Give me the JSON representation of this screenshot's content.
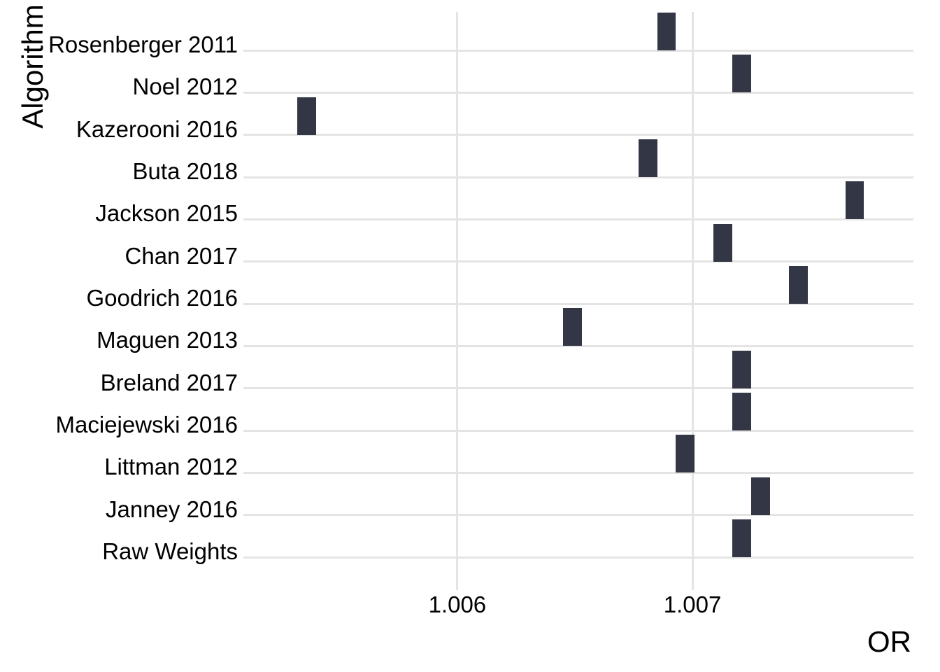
{
  "chart_data": {
    "type": "bar",
    "subtype": "horizontal-forest-crossbar",
    "title": "",
    "xlabel": "OR",
    "ylabel": "Algorithm",
    "legend_position": "none",
    "grid": true,
    "categories": [
      "Rosenberger 2011",
      "Noel 2012",
      "Kazerooni 2016",
      "Buta 2018",
      "Jackson 2015",
      "Chan 2017",
      "Goodrich 2016",
      "Maguen 2013",
      "Breland 2017",
      "Maciejewski 2016",
      "Littman 2012",
      "Janney 2016",
      "Raw Weights"
    ],
    "series": [
      {
        "name": "OR",
        "values": [
          1.00689,
          1.00721,
          1.00536,
          1.00681,
          1.00769,
          1.00713,
          1.00745,
          1.00649,
          1.00721,
          1.00721,
          1.00697,
          1.00729,
          1.00721
        ]
      }
    ],
    "bar_or_ranges": [
      [
        1.00685,
        1.00693
      ],
      [
        1.00717,
        1.00725
      ],
      [
        1.00532,
        1.0054
      ],
      [
        1.00677,
        1.00685
      ],
      [
        1.00765,
        1.00773
      ],
      [
        1.00709,
        1.00717
      ],
      [
        1.00741,
        1.00749
      ],
      [
        1.00645,
        1.00653
      ],
      [
        1.00717,
        1.00725
      ],
      [
        1.00717,
        1.00725
      ],
      [
        1.00693,
        1.00701
      ],
      [
        1.00725,
        1.00733
      ],
      [
        1.00717,
        1.00725
      ]
    ],
    "x_ticks": [
      {
        "value": 1.006,
        "label": "1.006"
      },
      {
        "value": 1.007,
        "label": "1.007"
      }
    ],
    "xlim": [
      1.00509,
      1.00794
    ],
    "colors": {
      "bar": "#333645",
      "gridline": "#E4E4E4",
      "text": "#000000",
      "background": "#FFFFFF"
    }
  }
}
